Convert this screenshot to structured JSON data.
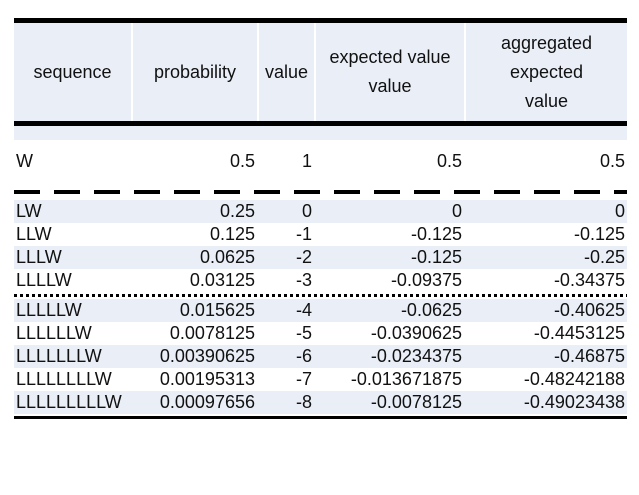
{
  "headers": [
    "sequence",
    "probability",
    "value",
    "expected value value",
    "aggregated expected value"
  ],
  "header_lines": [
    [
      "sequence"
    ],
    [
      "probability"
    ],
    [
      "value"
    ],
    [
      "expected value",
      "value"
    ],
    [
      "aggregated",
      "expected",
      "value"
    ]
  ],
  "rows_top": [
    {
      "sequence": "W",
      "probability": "0.5",
      "value": "1",
      "expected_value": "0.5",
      "aggregated": "0.5"
    }
  ],
  "rows_mid": [
    {
      "sequence": "LW",
      "probability": "0.25",
      "value": "0",
      "expected_value": "0",
      "aggregated": "0"
    },
    {
      "sequence": "LLW",
      "probability": "0.125",
      "value": "-1",
      "expected_value": "-0.125",
      "aggregated": "-0.125"
    },
    {
      "sequence": "LLLW",
      "probability": "0.0625",
      "value": "-2",
      "expected_value": "-0.125",
      "aggregated": "-0.25"
    },
    {
      "sequence": "LLLLW",
      "probability": "0.03125",
      "value": "-3",
      "expected_value": "-0.09375",
      "aggregated": "-0.34375"
    }
  ],
  "rows_bottom": [
    {
      "sequence": "LLLLLW",
      "probability": "0.015625",
      "value": "-4",
      "expected_value": "-0.0625",
      "aggregated": "-0.40625"
    },
    {
      "sequence": "LLLLLLW",
      "probability": "0.0078125",
      "value": "-5",
      "expected_value": "-0.0390625",
      "aggregated": "-0.4453125"
    },
    {
      "sequence": "LLLLLLLW",
      "probability": "0.00390625",
      "value": "-6",
      "expected_value": "-0.0234375",
      "aggregated": "-0.46875"
    },
    {
      "sequence": "LLLLLLLLW",
      "probability": "0.00195313",
      "value": "-7",
      "expected_value": "-0.013671875",
      "aggregated": "-0.48242188"
    },
    {
      "sequence": "LLLLLLLLLW",
      "probability": "0.00097656",
      "value": "-8",
      "expected_value": "-0.0078125",
      "aggregated": "-0.49023438"
    }
  ]
}
